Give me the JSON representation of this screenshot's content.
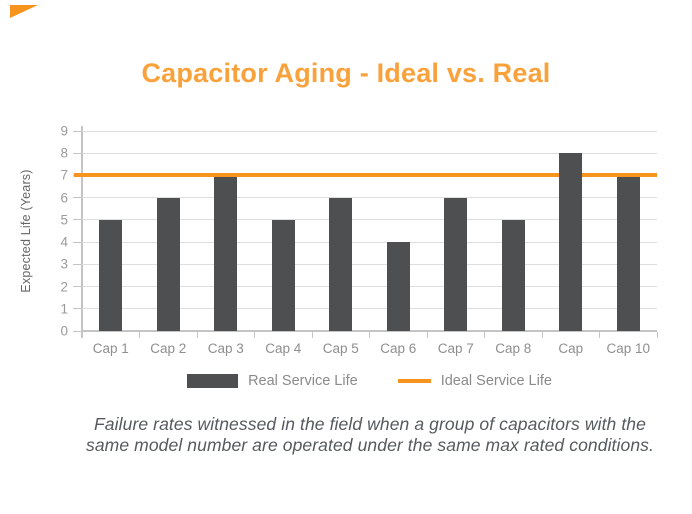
{
  "page": {
    "title": "Capacitor Aging - Ideal vs. Real",
    "title_color": "#F9A13B",
    "accent_color": "#F7941E"
  },
  "chart_data": {
    "type": "bar",
    "title": "Capacitor Aging - Ideal vs. Real",
    "categories": [
      "Cap 1",
      "Cap 2",
      "Cap 3",
      "Cap 4",
      "Cap 5",
      "Cap 6",
      "Cap 7",
      "Cap 8",
      "Cap",
      "Cap 10"
    ],
    "series": [
      {
        "name": "Real Service Life",
        "type": "bar",
        "color": "#4E4F51",
        "values": [
          5,
          6,
          7,
          5,
          6,
          4,
          6,
          5,
          8,
          7
        ]
      },
      {
        "name": "Ideal Service Life",
        "type": "line",
        "color": "#F7941E",
        "value": 7
      }
    ],
    "xlabel": "",
    "ylabel": "Expected Life (Years)",
    "ylim": [
      0,
      9
    ],
    "yticks": [
      0,
      1,
      2,
      3,
      4,
      5,
      6,
      7,
      8,
      9
    ],
    "grid": true,
    "legend_position": "bottom"
  },
  "legend": {
    "real_label": "Real Service Life",
    "ideal_label": "Ideal Service Life"
  },
  "caption": {
    "line1": "Failure rates witnessed in the field when a group of capacitors with the",
    "line2": "same model number are operated under the same max rated conditions."
  }
}
